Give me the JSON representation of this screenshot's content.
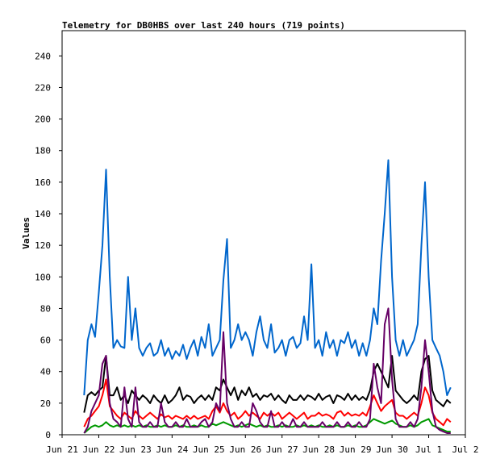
{
  "chart_data": {
    "type": "line",
    "title": "Telemetry for DB0HBS over last 240 hours (719 points)",
    "xlabel": "",
    "ylabel": "Values",
    "ylim": [
      0,
      256
    ],
    "y_ticks": [
      0,
      20,
      40,
      60,
      80,
      100,
      120,
      140,
      160,
      180,
      200,
      220,
      240
    ],
    "x_ticks": [
      "Jun 21",
      "Jun 22",
      "Jun 23",
      "Jun 24",
      "Jun 25",
      "Jun 26",
      "Jun 27",
      "Jun 28",
      "Jun 29",
      "Jun 30",
      "Jul 1",
      "Jul 2"
    ],
    "x_range_days": [
      0,
      11
    ],
    "grid": false,
    "legend": "none",
    "x": [
      0.6,
      0.7,
      0.8,
      0.9,
      1.0,
      1.1,
      1.2,
      1.3,
      1.4,
      1.5,
      1.6,
      1.7,
      1.8,
      1.9,
      2.0,
      2.1,
      2.2,
      2.3,
      2.4,
      2.5,
      2.6,
      2.7,
      2.8,
      2.9,
      3.0,
      3.1,
      3.2,
      3.3,
      3.4,
      3.5,
      3.6,
      3.7,
      3.8,
      3.9,
      4.0,
      4.1,
      4.2,
      4.3,
      4.4,
      4.5,
      4.6,
      4.7,
      4.8,
      4.9,
      5.0,
      5.1,
      5.2,
      5.3,
      5.4,
      5.5,
      5.6,
      5.7,
      5.8,
      5.9,
      6.0,
      6.1,
      6.2,
      6.3,
      6.4,
      6.5,
      6.6,
      6.7,
      6.8,
      6.9,
      7.0,
      7.1,
      7.2,
      7.3,
      7.4,
      7.5,
      7.6,
      7.7,
      7.8,
      7.9,
      8.0,
      8.1,
      8.2,
      8.3,
      8.4,
      8.5,
      8.6,
      8.7,
      8.8,
      8.9,
      9.0,
      9.1,
      9.2,
      9.3,
      9.4,
      9.5,
      9.6,
      9.7,
      9.8,
      9.9,
      10.0,
      10.1,
      10.2,
      10.3,
      10.4,
      10.5,
      10.6
    ],
    "series": [
      {
        "color": "#0066cc",
        "values": [
          25,
          60,
          70,
          62,
          90,
          120,
          168,
          100,
          55,
          60,
          56,
          55,
          100,
          60,
          80,
          55,
          50,
          55,
          58,
          50,
          52,
          60,
          50,
          55,
          48,
          53,
          50,
          57,
          48,
          55,
          60,
          50,
          62,
          55,
          70,
          50,
          55,
          60,
          98,
          124,
          55,
          60,
          70,
          60,
          65,
          60,
          50,
          65,
          75,
          60,
          55,
          70,
          52,
          55,
          60,
          50,
          60,
          62,
          55,
          58,
          75,
          60,
          108,
          55,
          60,
          50,
          65,
          55,
          60,
          50,
          60,
          58,
          65,
          55,
          60,
          50,
          58,
          50,
          60,
          80,
          70,
          110,
          140,
          174,
          100,
          60,
          50,
          60,
          50,
          55,
          60,
          70,
          120,
          160,
          100,
          60,
          55,
          50,
          40,
          25,
          30
        ]
      },
      {
        "color": "#000000",
        "values": [
          14,
          25,
          27,
          25,
          28,
          30,
          50,
          25,
          25,
          30,
          22,
          25,
          20,
          28,
          25,
          22,
          25,
          23,
          20,
          25,
          22,
          20,
          25,
          20,
          22,
          25,
          30,
          22,
          25,
          24,
          20,
          23,
          25,
          22,
          25,
          22,
          30,
          28,
          35,
          30,
          25,
          30,
          22,
          28,
          25,
          30,
          24,
          26,
          22,
          25,
          24,
          26,
          22,
          25,
          22,
          20,
          25,
          22,
          22,
          25,
          22,
          25,
          24,
          22,
          26,
          22,
          24,
          25,
          20,
          25,
          24,
          22,
          26,
          22,
          25,
          22,
          24,
          22,
          28,
          40,
          45,
          40,
          35,
          30,
          50,
          28,
          25,
          22,
          20,
          22,
          25,
          22,
          40,
          48,
          50,
          28,
          22,
          20,
          18,
          22,
          20
        ]
      },
      {
        "color": "#ff0000",
        "values": [
          5,
          10,
          12,
          15,
          18,
          25,
          35,
          18,
          15,
          12,
          10,
          14,
          12,
          10,
          15,
          12,
          10,
          12,
          14,
          12,
          10,
          13,
          11,
          12,
          10,
          12,
          11,
          10,
          12,
          10,
          12,
          10,
          11,
          12,
          10,
          15,
          18,
          14,
          20,
          15,
          12,
          14,
          10,
          12,
          15,
          12,
          14,
          12,
          10,
          14,
          12,
          14,
          12,
          14,
          10,
          12,
          14,
          12,
          10,
          12,
          14,
          10,
          12,
          12,
          14,
          12,
          13,
          12,
          10,
          14,
          15,
          12,
          14,
          12,
          13,
          12,
          14,
          12,
          18,
          25,
          20,
          15,
          18,
          20,
          22,
          14,
          12,
          12,
          10,
          12,
          14,
          12,
          20,
          30,
          25,
          14,
          10,
          8,
          6,
          10,
          8
        ]
      },
      {
        "color": "#009900",
        "values": [
          1,
          3,
          5,
          6,
          5,
          6,
          8,
          6,
          5,
          6,
          5,
          6,
          5,
          6,
          5,
          6,
          5,
          6,
          5,
          5,
          6,
          5,
          6,
          5,
          5,
          6,
          5,
          6,
          5,
          5,
          6,
          5,
          6,
          5,
          5,
          7,
          6,
          7,
          8,
          7,
          6,
          5,
          6,
          5,
          6,
          7,
          6,
          5,
          6,
          5,
          6,
          5,
          5,
          6,
          5,
          6,
          5,
          5,
          6,
          5,
          6,
          5,
          6,
          5,
          6,
          5,
          5,
          6,
          5,
          6,
          5,
          5,
          6,
          5,
          6,
          5,
          5,
          6,
          8,
          10,
          9,
          8,
          7,
          8,
          9,
          7,
          6,
          5,
          5,
          6,
          5,
          6,
          8,
          9,
          10,
          6,
          5,
          4,
          3,
          2,
          2
        ]
      },
      {
        "color": "#660066",
        "values": [
          1,
          5,
          15,
          20,
          25,
          45,
          50,
          20,
          10,
          8,
          5,
          30,
          10,
          5,
          30,
          8,
          5,
          5,
          8,
          5,
          5,
          20,
          8,
          5,
          5,
          8,
          5,
          5,
          10,
          5,
          5,
          5,
          8,
          10,
          5,
          8,
          20,
          15,
          65,
          20,
          10,
          5,
          5,
          8,
          5,
          5,
          20,
          15,
          8,
          5,
          5,
          15,
          5,
          5,
          8,
          5,
          5,
          10,
          5,
          5,
          8,
          5,
          5,
          5,
          5,
          8,
          5,
          5,
          5,
          8,
          5,
          5,
          8,
          5,
          5,
          8,
          5,
          5,
          10,
          45,
          30,
          20,
          70,
          80,
          35,
          10,
          5,
          5,
          5,
          8,
          5,
          10,
          30,
          60,
          40,
          15,
          5,
          3,
          2,
          1,
          1
        ]
      }
    ]
  }
}
